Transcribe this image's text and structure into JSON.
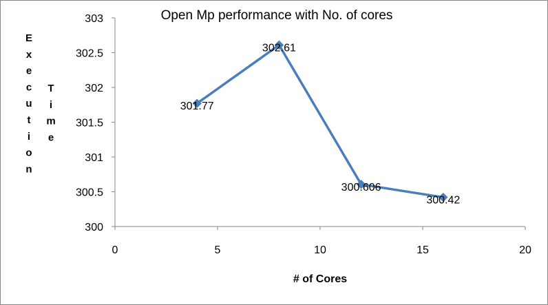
{
  "chart_data": {
    "type": "scatter",
    "title": "Open Mp performance with No. of cores",
    "xlabel": "# of Cores",
    "ylabel": "Execution Time",
    "xlim": [
      0,
      20
    ],
    "ylim": [
      300,
      303
    ],
    "x_ticks": [
      "0",
      "5",
      "10",
      "15",
      "20"
    ],
    "y_ticks": [
      "300",
      "300.5",
      "301",
      "301.5",
      "302",
      "302.5",
      "303"
    ],
    "series": [
      {
        "x": [
          4,
          8,
          12,
          16
        ],
        "y": [
          301.77,
          302.61,
          300.606,
          300.42
        ],
        "labels": [
          "301.77",
          "302.61",
          "300.606",
          "300.42"
        ]
      }
    ],
    "grid": false,
    "legend": "none",
    "line_color": "#4A7EBB",
    "marker": "diamond",
    "connected": true
  }
}
